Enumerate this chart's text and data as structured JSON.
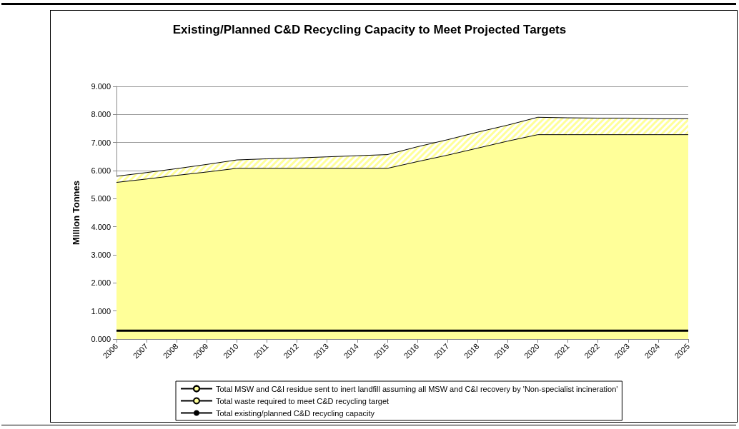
{
  "chart_data": {
    "type": "area",
    "title": "Existing/Planned C&D Recycling Capacity to Meet Projected Targets",
    "ylabel": "Million Tonnes",
    "categories": [
      "2006",
      "2007",
      "2008",
      "2009",
      "2010",
      "2011",
      "2012",
      "2013",
      "2014",
      "2015",
      "2016",
      "2017",
      "2018",
      "2019",
      "2020",
      "2021",
      "2022",
      "2023",
      "2024",
      "2025"
    ],
    "stacked": true,
    "series": [
      {
        "name": "Total waste required to meet C&D recycling target",
        "color": "#ffff99",
        "values": [
          5.58,
          5.7,
          5.83,
          5.95,
          6.08,
          6.08,
          6.08,
          6.08,
          6.08,
          6.08,
          6.32,
          6.55,
          6.8,
          7.05,
          7.28,
          7.28,
          7.28,
          7.28,
          7.28,
          7.28
        ]
      },
      {
        "name": "Total MSW and C&I residue sent to inert landfill assuming all MSW and C&I recovery by 'Non-specialist incineration'",
        "color": "#ffff99",
        "values": [
          0.22,
          0.23,
          0.24,
          0.27,
          0.3,
          0.34,
          0.37,
          0.41,
          0.45,
          0.49,
          0.53,
          0.55,
          0.57,
          0.57,
          0.62,
          0.6,
          0.59,
          0.59,
          0.57,
          0.57
        ]
      },
      {
        "name": "Total existing/planned C&D recycling capacity",
        "type": "line",
        "color": "#000000",
        "values": [
          0.3,
          0.3,
          0.3,
          0.3,
          0.3,
          0.3,
          0.3,
          0.3,
          0.3,
          0.3,
          0.3,
          0.3,
          0.3,
          0.3,
          0.3,
          0.3,
          0.3,
          0.3,
          0.3,
          0.3
        ]
      }
    ],
    "ylim": [
      0,
      9
    ],
    "yticks": [
      {
        "value": 0,
        "label": "0.000"
      },
      {
        "value": 1,
        "label": "1.000"
      },
      {
        "value": 2,
        "label": "2.000"
      },
      {
        "value": 3,
        "label": "3.000"
      },
      {
        "value": 4,
        "label": "4.000"
      },
      {
        "value": 5,
        "label": "5.000"
      },
      {
        "value": 6,
        "label": "6.000"
      },
      {
        "value": 7,
        "label": "7.000"
      },
      {
        "value": 8,
        "label": "8.000"
      },
      {
        "value": 9,
        "label": "9.000"
      }
    ],
    "grid": "y",
    "legend": "bottom",
    "marker": "none",
    "line_style": "solid"
  }
}
